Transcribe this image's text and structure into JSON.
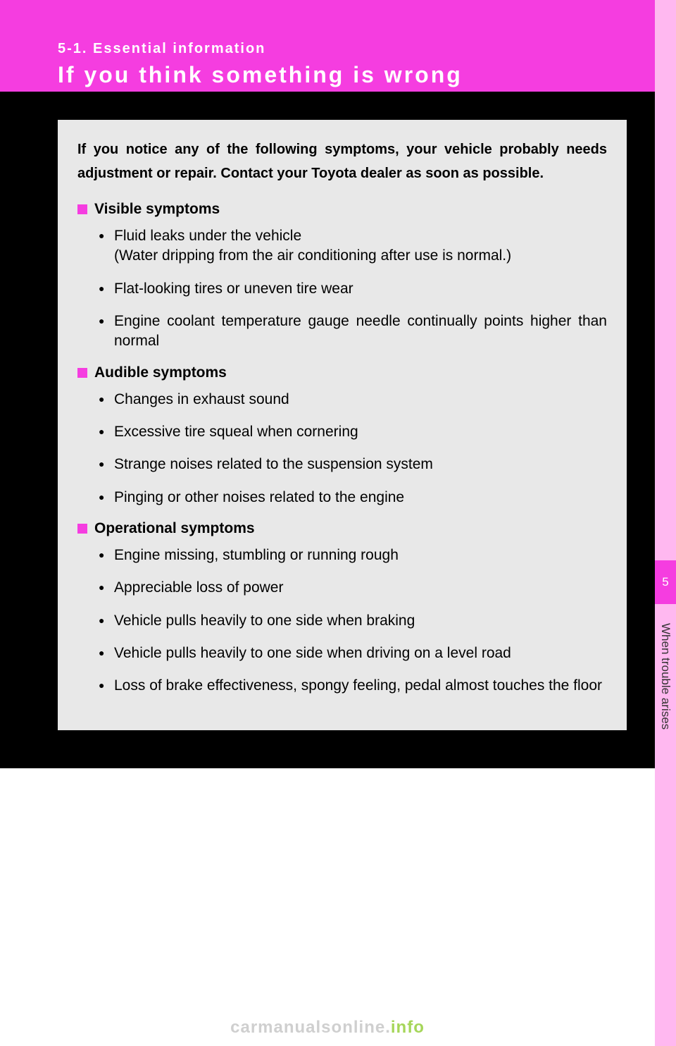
{
  "colors": {
    "accent": "#f53de0",
    "side_tab_bg": "#ffb8f0",
    "card_bg": "#e8e8e8",
    "black": "#000000",
    "watermark_gray": "#cfcfcf",
    "watermark_accent": "#a6d65a"
  },
  "header": {
    "section_label": "5-1. Essential information",
    "title": "If you think something is wrong"
  },
  "side": {
    "chapter_number": "5",
    "chapter_label": "When trouble arises"
  },
  "intro": "If you notice any of the following symptoms, your vehicle probably needs adjustment or repair. Contact your Toyota dealer as soon as possible.",
  "sections": {
    "visible": {
      "heading": "Visible symptoms",
      "items": [
        {
          "text": "Fluid leaks under the vehicle",
          "sub": "(Water dripping from the air conditioning after use is normal.)"
        },
        {
          "text": "Flat-looking tires or uneven tire wear"
        },
        {
          "text": "Engine coolant temperature gauge needle continually points higher than normal"
        }
      ]
    },
    "audible": {
      "heading": "Audible symptoms",
      "items": [
        {
          "text": "Changes in exhaust sound"
        },
        {
          "text": "Excessive tire squeal when cornering"
        },
        {
          "text": "Strange noises related to the suspension system"
        },
        {
          "text": "Pinging or other noises related to the engine"
        }
      ]
    },
    "operational": {
      "heading": "Operational symptoms",
      "items": [
        {
          "text": "Engine missing, stumbling or running rough"
        },
        {
          "text": "Appreciable loss of power"
        },
        {
          "text": "Vehicle pulls heavily to one side when braking"
        },
        {
          "text": "Vehicle pulls heavily to one side when driving on a level road"
        },
        {
          "text": "Loss of brake effectiveness, spongy feeling, pedal almost touches the floor"
        }
      ]
    }
  },
  "watermark": {
    "main": "carmanualsonline.",
    "accent": "info"
  }
}
